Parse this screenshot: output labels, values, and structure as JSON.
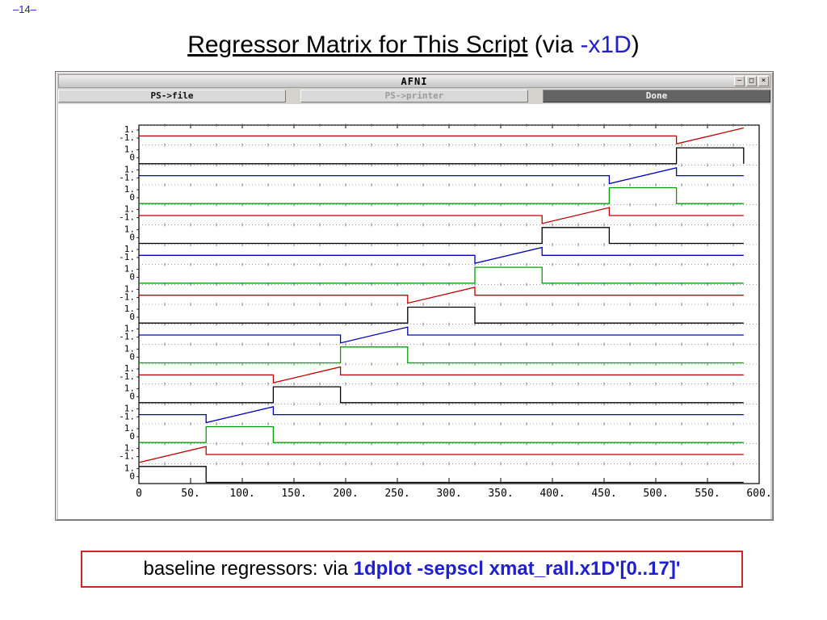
{
  "slide": {
    "page_number": "–14–",
    "title_underlined": "Regressor Matrix for This Script",
    "title_via_prefix": " (via ",
    "title_flag": "-x1D",
    "title_suffix": ")",
    "caption_prefix": "baseline regressors: via ",
    "caption_command": "1dplot -sepscl xmat_rall.x1D'[0..17]'",
    "accent_blue": "#2020cc",
    "caption_border_red": "#d22525"
  },
  "window": {
    "title": "AFNI",
    "buttons": {
      "ps_file": "PS->file",
      "ps_printer": "PS->printer",
      "done": "Done"
    },
    "controls": [
      {
        "name": "minimize",
        "glyph": "–"
      },
      {
        "name": "maximize",
        "glyph": "□"
      },
      {
        "name": "close",
        "glyph": "×"
      }
    ]
  },
  "chart_data": {
    "type": "line",
    "description": "18 baseline regressors (9 runs x [constant, linear drift]) stacked with separate vertical scales (1dplot -sepscl style)",
    "data_length": 585,
    "n_runs": 9,
    "run_length": 65,
    "x_axis": {
      "max": 600,
      "tick_values": [
        0,
        50,
        100,
        150,
        200,
        250,
        300,
        350,
        400,
        450,
        500,
        550,
        600
      ],
      "tick_labels": [
        "0",
        "50.",
        "100.",
        "150.",
        "200.",
        "250.",
        "300.",
        "350.",
        "400.",
        "450.",
        "500.",
        "550.",
        "600."
      ]
    },
    "strip_ylabels": {
      "boxcar": [
        "1.",
        "0"
      ],
      "ramp": [
        "1.",
        "-1."
      ]
    },
    "grid": "dotted horizontal line per strip with small tick marks",
    "legend": "none",
    "series": [
      {
        "index": 0,
        "run": 1,
        "kind": "boxcar",
        "y_range": [
          0,
          1
        ],
        "x_on": [
          0,
          65
        ],
        "color": "#000000"
      },
      {
        "index": 1,
        "run": 1,
        "kind": "ramp",
        "y_range": [
          -1,
          1
        ],
        "x_on": [
          0,
          65
        ],
        "color": "#c00000"
      },
      {
        "index": 2,
        "run": 2,
        "kind": "boxcar",
        "y_range": [
          0,
          1
        ],
        "x_on": [
          65,
          130
        ],
        "color": "#00a000"
      },
      {
        "index": 3,
        "run": 2,
        "kind": "ramp",
        "y_range": [
          -1,
          1
        ],
        "x_on": [
          65,
          130
        ],
        "color": "#0000c0"
      },
      {
        "index": 4,
        "run": 3,
        "kind": "boxcar",
        "y_range": [
          0,
          1
        ],
        "x_on": [
          130,
          195
        ],
        "color": "#000000"
      },
      {
        "index": 5,
        "run": 3,
        "kind": "ramp",
        "y_range": [
          -1,
          1
        ],
        "x_on": [
          130,
          195
        ],
        "color": "#c00000"
      },
      {
        "index": 6,
        "run": 4,
        "kind": "boxcar",
        "y_range": [
          0,
          1
        ],
        "x_on": [
          195,
          260
        ],
        "color": "#00a000"
      },
      {
        "index": 7,
        "run": 4,
        "kind": "ramp",
        "y_range": [
          -1,
          1
        ],
        "x_on": [
          195,
          260
        ],
        "color": "#0000c0"
      },
      {
        "index": 8,
        "run": 5,
        "kind": "boxcar",
        "y_range": [
          0,
          1
        ],
        "x_on": [
          260,
          325
        ],
        "color": "#000000"
      },
      {
        "index": 9,
        "run": 5,
        "kind": "ramp",
        "y_range": [
          -1,
          1
        ],
        "x_on": [
          260,
          325
        ],
        "color": "#c00000"
      },
      {
        "index": 10,
        "run": 6,
        "kind": "boxcar",
        "y_range": [
          0,
          1
        ],
        "x_on": [
          325,
          390
        ],
        "color": "#00a000"
      },
      {
        "index": 11,
        "run": 6,
        "kind": "ramp",
        "y_range": [
          -1,
          1
        ],
        "x_on": [
          325,
          390
        ],
        "color": "#0000c0"
      },
      {
        "index": 12,
        "run": 7,
        "kind": "boxcar",
        "y_range": [
          0,
          1
        ],
        "x_on": [
          390,
          455
        ],
        "color": "#000000"
      },
      {
        "index": 13,
        "run": 7,
        "kind": "ramp",
        "y_range": [
          -1,
          1
        ],
        "x_on": [
          390,
          455
        ],
        "color": "#c00000"
      },
      {
        "index": 14,
        "run": 8,
        "kind": "boxcar",
        "y_range": [
          0,
          1
        ],
        "x_on": [
          455,
          520
        ],
        "color": "#00a000"
      },
      {
        "index": 15,
        "run": 8,
        "kind": "ramp",
        "y_range": [
          -1,
          1
        ],
        "x_on": [
          455,
          520
        ],
        "color": "#0000c0"
      },
      {
        "index": 16,
        "run": 9,
        "kind": "boxcar",
        "y_range": [
          0,
          1
        ],
        "x_on": [
          520,
          585
        ],
        "color": "#000000"
      },
      {
        "index": 17,
        "run": 9,
        "kind": "ramp",
        "y_range": [
          -1,
          1
        ],
        "x_on": [
          520,
          585
        ],
        "color": "#c00000"
      }
    ]
  }
}
